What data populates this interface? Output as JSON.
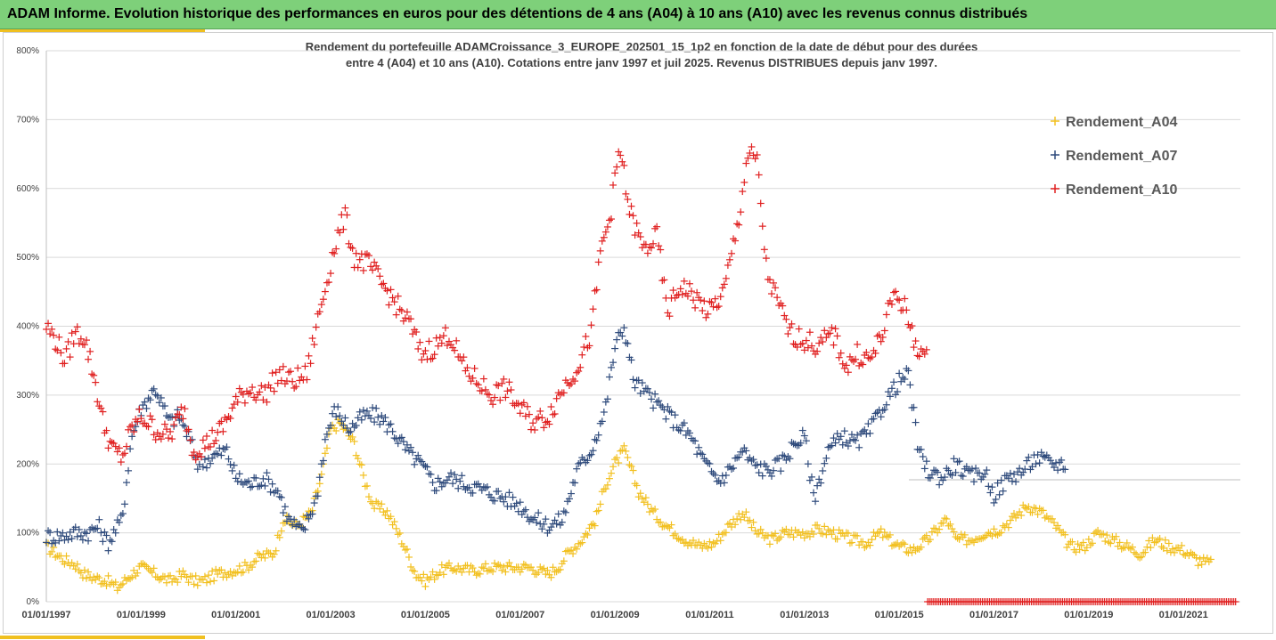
{
  "header": {
    "title": "ADAM Informe. Evolution historique des performances en euros pour des détentions de 4 ans (A04) à 10 ans (A10) avec les revenus connus distribués"
  },
  "chart_data": {
    "type": "scatter",
    "title_line1": "Rendement du portefeuille ADAMCroissance_3_EUROPE_202501_15_1p2  en fonction de la date de début pour des durées",
    "title_line2": "entre 4 (A04) et 10 ans (A10). Cotations entre janv 1997 et juil 2025. Revenus DISTRIBUES depuis janv 1997.",
    "x_range": [
      "1997-01-01",
      "2022-03-01"
    ],
    "xtick_labels": [
      "01/01/1997",
      "01/01/1999",
      "01/01/2001",
      "01/01/2003",
      "01/01/2005",
      "01/01/2007",
      "01/01/2009",
      "01/01/2011",
      "01/01/2013",
      "01/01/2015",
      "01/01/2017",
      "01/01/2019",
      "01/01/2021"
    ],
    "ytick_labels": [
      "0%",
      "100%",
      "200%",
      "300%",
      "400%",
      "500%",
      "600%",
      "700%",
      "800%"
    ],
    "ylim": [
      0,
      8
    ],
    "y_gridlines": true,
    "reference_line": 1.77,
    "legend_position": "top-right",
    "marker": "+",
    "series": [
      {
        "name": "Rendement_A04",
        "color": "#f2c020",
        "x_start": 1997.0,
        "x_end": 2021.6,
        "points": [
          [
            1997.0,
            0.8
          ],
          [
            1997.2,
            0.7
          ],
          [
            1997.4,
            0.6
          ],
          [
            1997.6,
            0.55
          ],
          [
            1997.8,
            0.4
          ],
          [
            1998.0,
            0.35
          ],
          [
            1998.3,
            0.3
          ],
          [
            1998.5,
            0.2
          ],
          [
            1998.8,
            0.4
          ],
          [
            1999.0,
            0.5
          ],
          [
            1999.3,
            0.4
          ],
          [
            1999.6,
            0.3
          ],
          [
            1999.9,
            0.4
          ],
          [
            2000.1,
            0.3
          ],
          [
            2000.3,
            0.3
          ],
          [
            2000.6,
            0.4
          ],
          [
            2000.9,
            0.45
          ],
          [
            2001.2,
            0.5
          ],
          [
            2001.5,
            0.65
          ],
          [
            2001.8,
            0.7
          ],
          [
            2002.0,
            1.2
          ],
          [
            2002.3,
            1.1
          ],
          [
            2002.6,
            1.3
          ],
          [
            2002.8,
            1.8
          ],
          [
            2003.0,
            2.5
          ],
          [
            2003.2,
            2.6
          ],
          [
            2003.5,
            2.3
          ],
          [
            2003.7,
            1.8
          ],
          [
            2003.9,
            1.4
          ],
          [
            2004.2,
            1.3
          ],
          [
            2004.5,
            0.9
          ],
          [
            2004.8,
            0.4
          ],
          [
            2005.0,
            0.3
          ],
          [
            2005.3,
            0.45
          ],
          [
            2005.6,
            0.5
          ],
          [
            2006.0,
            0.45
          ],
          [
            2006.4,
            0.5
          ],
          [
            2006.8,
            0.5
          ],
          [
            2007.2,
            0.5
          ],
          [
            2007.6,
            0.4
          ],
          [
            2007.8,
            0.5
          ],
          [
            2008.0,
            0.7
          ],
          [
            2008.3,
            0.9
          ],
          [
            2008.6,
            1.2
          ],
          [
            2008.8,
            1.7
          ],
          [
            2009.0,
            2.0
          ],
          [
            2009.2,
            2.2
          ],
          [
            2009.5,
            1.6
          ],
          [
            2009.8,
            1.3
          ],
          [
            2010.1,
            1.1
          ],
          [
            2010.5,
            0.9
          ],
          [
            2010.8,
            0.8
          ],
          [
            2011.1,
            0.85
          ],
          [
            2011.4,
            1.1
          ],
          [
            2011.7,
            1.3
          ],
          [
            2012.0,
            1.0
          ],
          [
            2012.3,
            0.9
          ],
          [
            2012.6,
            1.0
          ],
          [
            2013.0,
            1.0
          ],
          [
            2013.3,
            1.05
          ],
          [
            2013.6,
            1.0
          ],
          [
            2014.0,
            0.9
          ],
          [
            2014.3,
            0.85
          ],
          [
            2014.6,
            1.0
          ],
          [
            2015.0,
            0.8
          ],
          [
            2015.3,
            0.75
          ],
          [
            2015.6,
            0.9
          ],
          [
            2016.0,
            1.2
          ],
          [
            2016.2,
            0.9
          ],
          [
            2016.5,
            0.9
          ],
          [
            2016.8,
            1.0
          ],
          [
            2017.1,
            1.05
          ],
          [
            2017.4,
            1.2
          ],
          [
            2017.7,
            1.4
          ],
          [
            2018.0,
            1.3
          ],
          [
            2018.3,
            1.1
          ],
          [
            2018.6,
            0.8
          ],
          [
            2018.9,
            0.8
          ],
          [
            2019.2,
            1.0
          ],
          [
            2019.5,
            0.9
          ],
          [
            2019.8,
            0.8
          ],
          [
            2020.1,
            0.7
          ],
          [
            2020.4,
            0.9
          ],
          [
            2020.7,
            0.8
          ],
          [
            2021.0,
            0.75
          ],
          [
            2021.3,
            0.6
          ],
          [
            2021.6,
            0.55
          ]
        ]
      },
      {
        "name": "Rendement_A07",
        "color": "#2f4b7c",
        "x_start": 1997.0,
        "x_end": 2018.5,
        "points": [
          [
            1997.0,
            0.95
          ],
          [
            1997.3,
            0.95
          ],
          [
            1997.6,
            1.0
          ],
          [
            1997.9,
            1.0
          ],
          [
            1998.1,
            1.1
          ],
          [
            1998.3,
            0.85
          ],
          [
            1998.6,
            1.2
          ],
          [
            1998.8,
            2.4
          ],
          [
            1999.0,
            2.8
          ],
          [
            1999.3,
            3.1
          ],
          [
            1999.6,
            2.6
          ],
          [
            1999.8,
            2.7
          ],
          [
            2000.0,
            2.4
          ],
          [
            2000.2,
            2.0
          ],
          [
            2000.5,
            2.1
          ],
          [
            2000.8,
            2.2
          ],
          [
            2001.0,
            1.8
          ],
          [
            2001.3,
            1.7
          ],
          [
            2001.6,
            1.8
          ],
          [
            2001.9,
            1.6
          ],
          [
            2002.1,
            1.2
          ],
          [
            2002.4,
            1.0
          ],
          [
            2002.7,
            1.5
          ],
          [
            2002.9,
            2.4
          ],
          [
            2003.1,
            2.8
          ],
          [
            2003.4,
            2.5
          ],
          [
            2003.7,
            2.7
          ],
          [
            2004.0,
            2.7
          ],
          [
            2004.3,
            2.5
          ],
          [
            2004.6,
            2.2
          ],
          [
            2004.9,
            2.0
          ],
          [
            2005.2,
            1.7
          ],
          [
            2005.5,
            1.8
          ],
          [
            2005.9,
            1.7
          ],
          [
            2006.3,
            1.6
          ],
          [
            2006.7,
            1.5
          ],
          [
            2007.0,
            1.4
          ],
          [
            2007.3,
            1.2
          ],
          [
            2007.6,
            1.1
          ],
          [
            2007.9,
            1.2
          ],
          [
            2008.2,
            1.9
          ],
          [
            2008.5,
            2.2
          ],
          [
            2008.8,
            2.8
          ],
          [
            2009.0,
            3.7
          ],
          [
            2009.2,
            4.0
          ],
          [
            2009.4,
            3.2
          ],
          [
            2009.7,
            3.0
          ],
          [
            2010.0,
            2.8
          ],
          [
            2010.3,
            2.6
          ],
          [
            2010.6,
            2.4
          ],
          [
            2010.9,
            2.0
          ],
          [
            2011.2,
            1.75
          ],
          [
            2011.4,
            1.9
          ],
          [
            2011.7,
            2.2
          ],
          [
            2011.9,
            2.0
          ],
          [
            2012.2,
            1.9
          ],
          [
            2012.5,
            2.0
          ],
          [
            2012.8,
            2.3
          ],
          [
            2013.0,
            2.4
          ],
          [
            2013.2,
            1.5
          ],
          [
            2013.5,
            2.2
          ],
          [
            2013.8,
            2.4
          ],
          [
            2014.1,
            2.3
          ],
          [
            2014.4,
            2.5
          ],
          [
            2014.7,
            2.9
          ],
          [
            2015.0,
            3.2
          ],
          [
            2015.2,
            3.3
          ],
          [
            2015.4,
            2.2
          ],
          [
            2015.6,
            1.9
          ],
          [
            2015.9,
            1.8
          ],
          [
            2016.2,
            2.0
          ],
          [
            2016.5,
            1.8
          ],
          [
            2016.8,
            1.9
          ],
          [
            2017.0,
            1.55
          ],
          [
            2017.3,
            1.8
          ],
          [
            2017.6,
            1.9
          ],
          [
            2017.9,
            2.1
          ],
          [
            2018.2,
            2.0
          ],
          [
            2018.5,
            2.0
          ]
        ]
      },
      {
        "name": "Rendement_A10",
        "color": "#e02020",
        "x_start": 1997.0,
        "x_end": 2015.6,
        "points": [
          [
            1997.0,
            4.0
          ],
          [
            1997.2,
            3.8
          ],
          [
            1997.4,
            3.5
          ],
          [
            1997.6,
            3.9
          ],
          [
            1997.8,
            3.85
          ],
          [
            1998.0,
            3.3
          ],
          [
            1998.2,
            2.6
          ],
          [
            1998.4,
            2.2
          ],
          [
            1998.6,
            2.1
          ],
          [
            1998.8,
            2.5
          ],
          [
            1999.0,
            2.7
          ],
          [
            1999.3,
            2.5
          ],
          [
            1999.6,
            2.4
          ],
          [
            1999.9,
            2.8
          ],
          [
            2000.1,
            2.2
          ],
          [
            2000.4,
            2.3
          ],
          [
            2000.7,
            2.5
          ],
          [
            2001.0,
            2.9
          ],
          [
            2001.3,
            3.1
          ],
          [
            2001.6,
            3.0
          ],
          [
            2001.9,
            3.3
          ],
          [
            2002.2,
            3.2
          ],
          [
            2002.5,
            3.3
          ],
          [
            2002.7,
            4.0
          ],
          [
            2002.9,
            4.6
          ],
          [
            2003.1,
            5.2
          ],
          [
            2003.3,
            5.6
          ],
          [
            2003.5,
            5.0
          ],
          [
            2003.8,
            4.9
          ],
          [
            2004.1,
            4.6
          ],
          [
            2004.4,
            4.3
          ],
          [
            2004.7,
            4.0
          ],
          [
            2004.9,
            3.6
          ],
          [
            2005.2,
            3.7
          ],
          [
            2005.5,
            3.9
          ],
          [
            2005.8,
            3.4
          ],
          [
            2006.1,
            3.2
          ],
          [
            2006.4,
            3.0
          ],
          [
            2006.7,
            3.1
          ],
          [
            2007.0,
            2.8
          ],
          [
            2007.3,
            2.6
          ],
          [
            2007.6,
            2.7
          ],
          [
            2007.9,
            3.1
          ],
          [
            2008.2,
            3.4
          ],
          [
            2008.5,
            3.9
          ],
          [
            2008.7,
            5.1
          ],
          [
            2008.9,
            5.6
          ],
          [
            2009.1,
            6.6
          ],
          [
            2009.3,
            5.7
          ],
          [
            2009.6,
            5.1
          ],
          [
            2009.9,
            5.3
          ],
          [
            2010.1,
            4.2
          ],
          [
            2010.4,
            4.6
          ],
          [
            2010.7,
            4.4
          ],
          [
            2011.0,
            4.2
          ],
          [
            2011.3,
            4.5
          ],
          [
            2011.6,
            5.5
          ],
          [
            2011.8,
            6.5
          ],
          [
            2012.0,
            6.4
          ],
          [
            2012.2,
            4.8
          ],
          [
            2012.4,
            4.4
          ],
          [
            2012.7,
            3.9
          ],
          [
            2013.0,
            3.8
          ],
          [
            2013.3,
            3.7
          ],
          [
            2013.6,
            3.9
          ],
          [
            2013.9,
            3.4
          ],
          [
            2014.1,
            3.6
          ],
          [
            2014.4,
            3.5
          ],
          [
            2014.7,
            4.0
          ],
          [
            2014.9,
            4.5
          ],
          [
            2015.1,
            4.3
          ],
          [
            2015.3,
            3.8
          ],
          [
            2015.6,
            3.5
          ]
        ]
      },
      {
        "name": "",
        "color": "#e02020",
        "x_start": 2015.6,
        "x_end": 2022.1,
        "points": [
          [
            2015.6,
            0.0
          ],
          [
            2022.1,
            0.0
          ]
        ]
      }
    ]
  }
}
